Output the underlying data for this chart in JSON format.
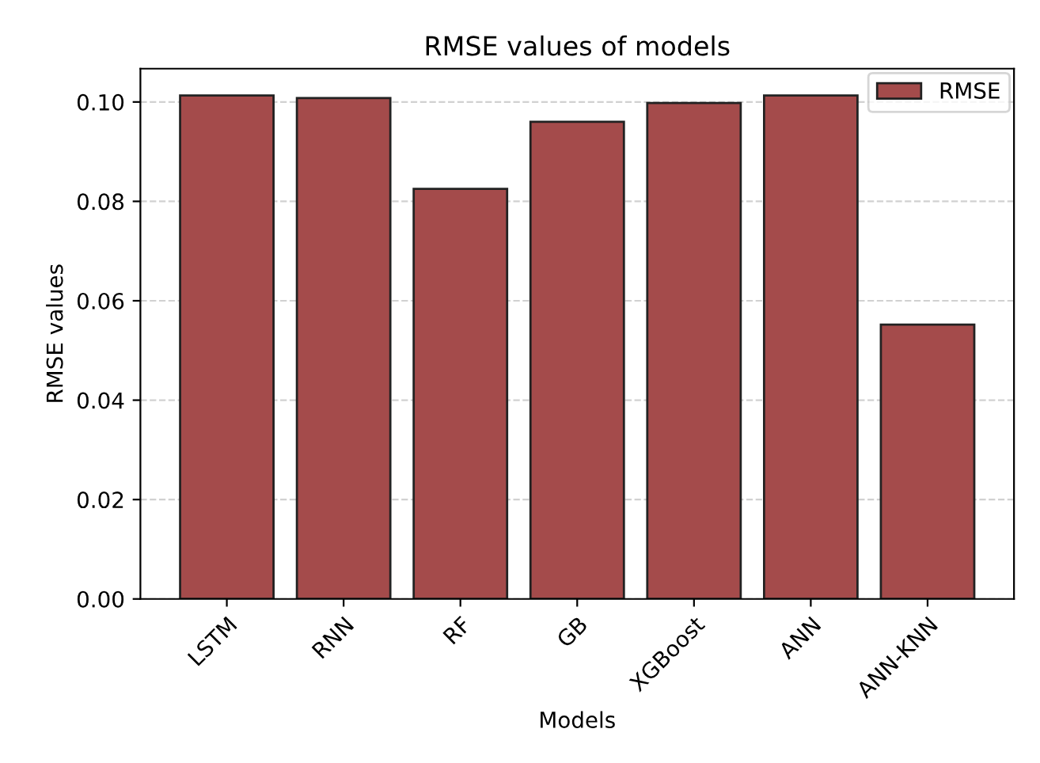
{
  "chart_data": {
    "type": "bar",
    "title": "RMSE values of models",
    "xlabel": "Models",
    "ylabel": "RMSE values",
    "categories": [
      "LSTM",
      "RNN",
      "RF",
      "GB",
      "XGBoost",
      "ANN",
      "ANN-KNN"
    ],
    "series": [
      {
        "name": "RMSE",
        "color": "#a44b4b",
        "values": [
          0.1013,
          0.1008,
          0.0825,
          0.096,
          0.0998,
          0.1013,
          0.0552
        ]
      }
    ],
    "ylim": [
      0,
      0.1067
    ],
    "yticks": [
      {
        "value": 0,
        "label": "0.00"
      },
      {
        "value": 0.02,
        "label": "0.02"
      },
      {
        "value": 0.04,
        "label": "0.04"
      },
      {
        "value": 0.06,
        "label": "0.06"
      },
      {
        "value": 0.08,
        "label": "0.08"
      },
      {
        "value": 0.1,
        "label": "0.10"
      }
    ],
    "grid": "y",
    "legend": "top right"
  }
}
